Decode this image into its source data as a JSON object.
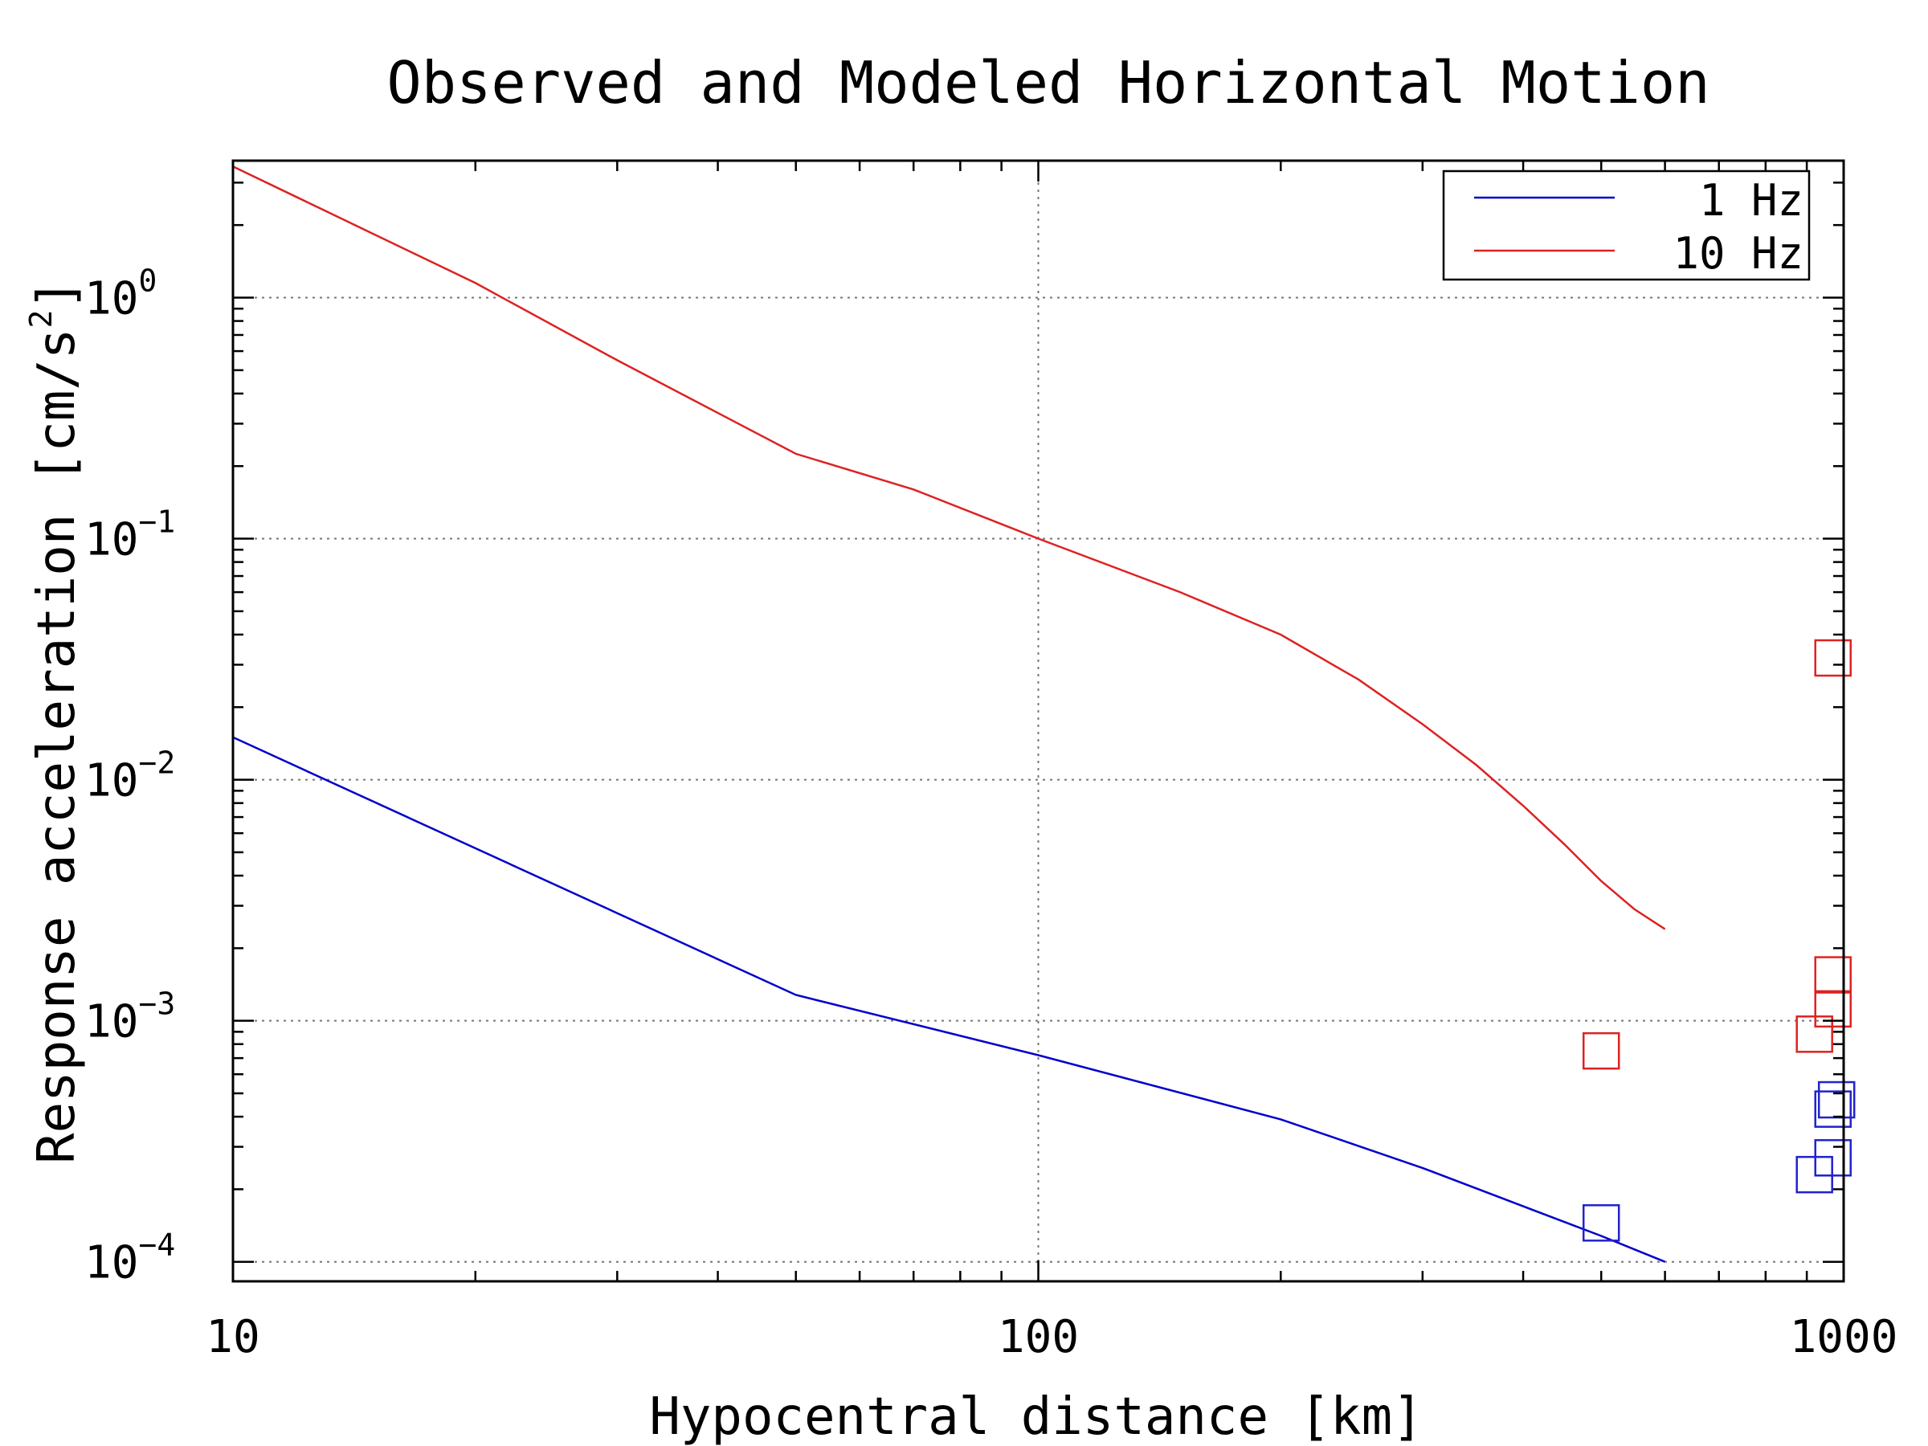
{
  "chart_data": {
    "type": "line",
    "title": "Observed and Modeled Horizontal Motion",
    "xlabel": "Hypocentral distance [km]",
    "ylabel": "Response acceleration [cm/s",
    "ylabel_sup": "2",
    "ylabel_close": "]",
    "x_scale": "log",
    "y_scale": "log",
    "xlim": [
      10,
      1000
    ],
    "ylim": [
      8.3e-05,
      3.7
    ],
    "x_ticks": [
      {
        "value": 10,
        "label": "10"
      },
      {
        "value": 100,
        "label": "100"
      },
      {
        "value": 1000,
        "label": "1000"
      }
    ],
    "y_ticks": [
      {
        "value": 1,
        "base": "10",
        "exp": "0"
      },
      {
        "value": 0.1,
        "base": "10",
        "exp": "−1"
      },
      {
        "value": 0.01,
        "base": "10",
        "exp": "−2"
      },
      {
        "value": 0.001,
        "base": "10",
        "exp": "−3"
      },
      {
        "value": 0.0001,
        "base": "10",
        "exp": "−4"
      }
    ],
    "grid": true,
    "legend_position": "top-right",
    "series": [
      {
        "name": "1 Hz",
        "color": "#0000cc",
        "kind": "line",
        "x": [
          10,
          50,
          100,
          200,
          300,
          400,
          500,
          600
        ],
        "y": [
          0.015,
          0.00128,
          0.00072,
          0.00039,
          0.000245,
          0.00017,
          0.000128,
          0.0001
        ]
      },
      {
        "name": "10 Hz",
        "color": "#dd2222",
        "kind": "line",
        "x": [
          10,
          20,
          30,
          50,
          70,
          100,
          150,
          200,
          250,
          300,
          350,
          400,
          450,
          500,
          550,
          600
        ],
        "y": [
          3.5,
          1.15,
          0.55,
          0.225,
          0.16,
          0.1,
          0.06,
          0.04,
          0.026,
          0.017,
          0.0115,
          0.0078,
          0.0054,
          0.0038,
          0.0029,
          0.0024
        ]
      }
    ],
    "observed": [
      {
        "series": "10 Hz",
        "color": "#dd2222",
        "points": [
          {
            "x": 500,
            "y": 0.00075
          },
          {
            "x": 920,
            "y": 0.00088
          },
          {
            "x": 970,
            "y": 0.00155
          },
          {
            "x": 970,
            "y": 0.00112
          },
          {
            "x": 970,
            "y": 0.032
          }
        ]
      },
      {
        "series": "1 Hz",
        "color": "#2222cc",
        "points": [
          {
            "x": 500,
            "y": 0.000145
          },
          {
            "x": 920,
            "y": 0.00023
          },
          {
            "x": 970,
            "y": 0.00027
          },
          {
            "x": 970,
            "y": 0.00043
          },
          {
            "x": 980,
            "y": 0.00047
          }
        ]
      }
    ]
  }
}
